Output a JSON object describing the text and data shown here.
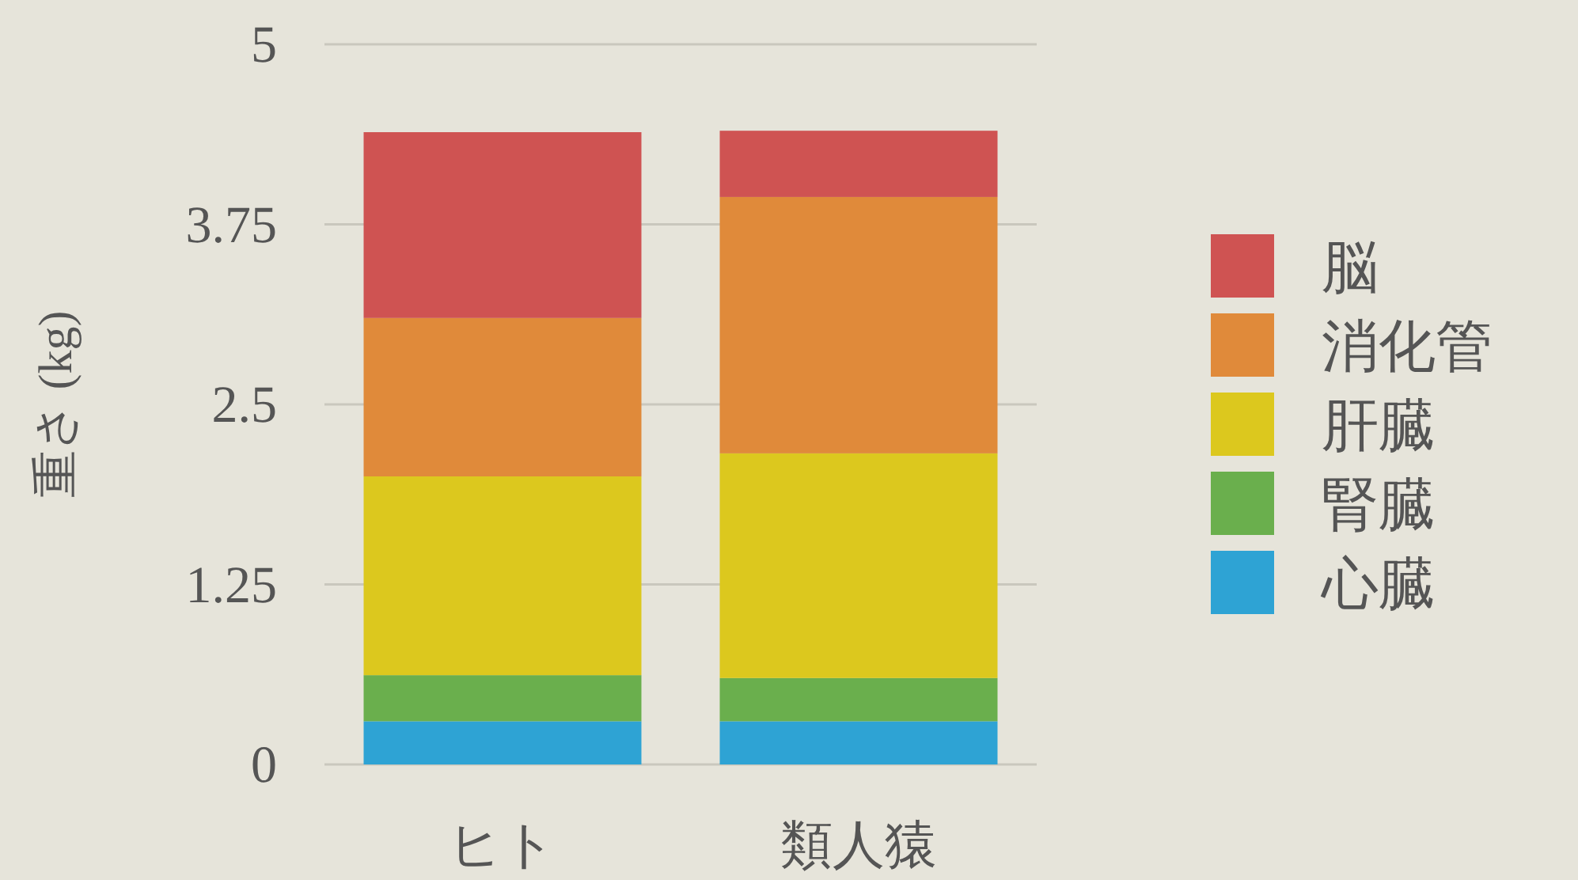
{
  "chart_data": {
    "type": "bar",
    "stacked": true,
    "ylabel": "重さ (kg)",
    "categories": [
      "ヒト",
      "類人猿"
    ],
    "ylim": [
      0,
      5
    ],
    "yticks": [
      0,
      1.25,
      2.5,
      3.75,
      5
    ],
    "grid": "y",
    "legend": "right",
    "series": [
      {
        "name": "心臓",
        "color": "#2ea3d4",
        "values": [
          0.3,
          0.3
        ]
      },
      {
        "name": "腎臓",
        "color": "#6aaf4d",
        "values": [
          0.32,
          0.3
        ]
      },
      {
        "name": "肝臓",
        "color": "#dcc81e",
        "values": [
          1.38,
          1.56
        ]
      },
      {
        "name": "消化管",
        "color": "#e08a3a",
        "values": [
          1.1,
          1.78
        ]
      },
      {
        "name": "脳",
        "color": "#cf5352",
        "values": [
          1.29,
          0.46
        ]
      }
    ]
  }
}
